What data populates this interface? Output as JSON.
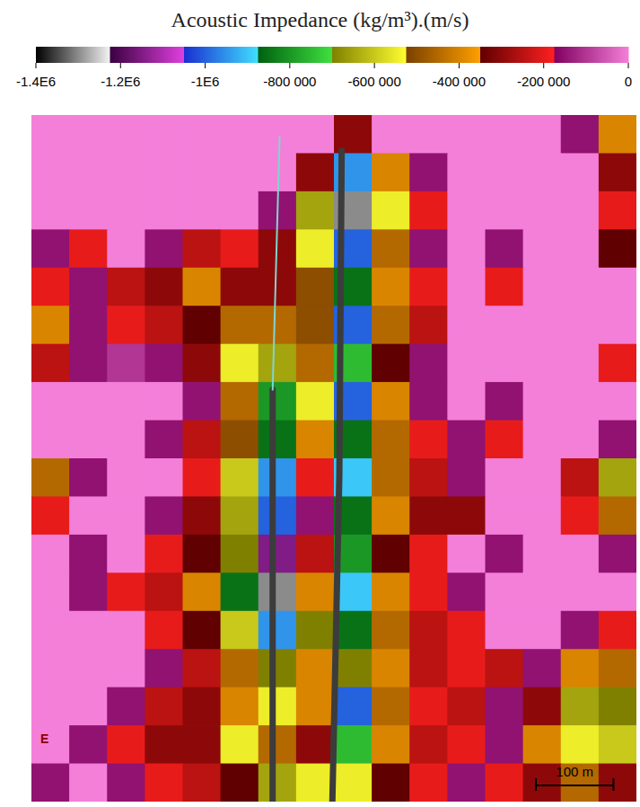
{
  "chart_data": {
    "type": "heatmap",
    "title": "Acoustic Impedance (kg/m³).(m/s)",
    "xlim": [
      0,
      780
    ],
    "ylim": [
      0,
      880
    ],
    "tick_labels": false,
    "cells": [
      [
        0,
        0,
        0,
        0,
        0,
        0,
        0,
        0,
        -300000,
        0,
        0,
        0,
        0,
        0,
        -150000,
        -400000
      ],
      [
        0,
        0,
        0,
        0,
        0,
        0,
        0,
        -300000,
        -950000,
        -400000,
        -150000,
        0,
        0,
        0,
        0,
        -300000
      ],
      [
        0,
        0,
        0,
        0,
        0,
        0,
        -150000,
        -650000,
        -1300000,
        -550000,
        -200000,
        0,
        0,
        0,
        0,
        -200000
      ],
      [
        -150000,
        -200000,
        0,
        -150000,
        -250000,
        -200000,
        -300000,
        -550000,
        -1000000,
        -450000,
        -150000,
        0,
        -150000,
        0,
        0,
        -350000
      ],
      [
        -200000,
        -150000,
        -250000,
        -300000,
        -400000,
        -300000,
        -300000,
        -500000,
        -850000,
        -400000,
        -200000,
        0,
        -200000,
        0,
        0,
        0
      ],
      [
        -400000,
        -150000,
        -200000,
        -250000,
        -350000,
        -450000,
        -450000,
        -500000,
        -1000000,
        -450000,
        -250000,
        0,
        0,
        0,
        0,
        0
      ],
      [
        -250000,
        -150000,
        -100000,
        -150000,
        -300000,
        -550000,
        -650000,
        -450000,
        -750000,
        -350000,
        -150000,
        0,
        0,
        0,
        0,
        -200000
      ],
      [
        0,
        0,
        0,
        0,
        -150000,
        -450000,
        -800000,
        -550000,
        -1000000,
        -400000,
        -150000,
        0,
        -150000,
        0,
        0,
        0
      ],
      [
        0,
        0,
        0,
        -150000,
        -250000,
        -500000,
        -850000,
        -400000,
        -850000,
        -450000,
        -200000,
        -150000,
        -200000,
        0,
        0,
        -150000
      ],
      [
        -450000,
        -150000,
        0,
        0,
        -200000,
        -600000,
        -950000,
        -200000,
        -900000,
        -450000,
        -250000,
        -150000,
        0,
        0,
        -250000,
        -650000
      ],
      [
        -200000,
        0,
        0,
        -150000,
        -300000,
        -650000,
        -1000000,
        -150000,
        -850000,
        -400000,
        -300000,
        -300000,
        0,
        0,
        -200000,
        -450000
      ],
      [
        0,
        -150000,
        0,
        -200000,
        -350000,
        -700000,
        -1150000,
        -250000,
        -800000,
        -350000,
        -200000,
        0,
        -150000,
        0,
        0,
        -150000
      ],
      [
        0,
        -150000,
        -200000,
        -250000,
        -400000,
        -850000,
        -1300000,
        -400000,
        -900000,
        -400000,
        -200000,
        -150000,
        0,
        0,
        0,
        0
      ],
      [
        0,
        0,
        0,
        -200000,
        -350000,
        -600000,
        -950000,
        -700000,
        -850000,
        -450000,
        -250000,
        -200000,
        0,
        0,
        -150000,
        -200000
      ],
      [
        0,
        0,
        0,
        -150000,
        -250000,
        -450000,
        -700000,
        -400000,
        -700000,
        -400000,
        -250000,
        -200000,
        -250000,
        -150000,
        -400000,
        -450000
      ],
      [
        0,
        0,
        -150000,
        -250000,
        -300000,
        -400000,
        -550000,
        -400000,
        -1000000,
        -450000,
        -200000,
        -250000,
        -150000,
        -300000,
        -650000,
        -700000
      ],
      [
        0,
        -150000,
        -200000,
        -300000,
        -300000,
        -550000,
        -450000,
        -300000,
        -750000,
        -400000,
        -250000,
        -200000,
        -150000,
        -400000,
        -550000,
        -600000
      ],
      [
        -150000,
        0,
        -150000,
        -200000,
        -250000,
        -350000,
        -650000,
        -550000,
        -550000,
        -350000,
        -200000,
        -150000,
        -200000,
        -300000,
        -450000,
        -300000
      ]
    ],
    "colorbar": {
      "range": [
        -1400000,
        0
      ],
      "ticks": [
        {
          "value": -1400000,
          "label": "-1.4E6"
        },
        {
          "value": -1200000,
          "label": "-1.2E6"
        },
        {
          "value": -1000000,
          "label": "-1E6"
        },
        {
          "value": -800000,
          "label": "-800 000"
        },
        {
          "value": -600000,
          "label": "-600 000"
        },
        {
          "value": -400000,
          "label": "-400 000"
        },
        {
          "value": -200000,
          "label": "-200 000"
        },
        0
      ],
      "colors": [
        "#000000",
        "#f4f4f4",
        "#3a0040",
        "#e040e0",
        "#1a2fd0",
        "#40e0ff",
        "#006010",
        "#40e040",
        "#808000",
        "#ffff30",
        "#7a4000",
        "#ffa000",
        "#600000",
        "#ff2020",
        "#800060",
        "#f47fd9"
      ]
    },
    "wells": [
      {
        "color": "#3c3c3c",
        "line_style": "thick",
        "x": [
          400,
          397,
          388
        ],
        "y": [
          46,
          461,
          880
        ]
      },
      {
        "color": "#3c3c3c",
        "line_style": "thick",
        "x": [
          311,
          311
        ],
        "y": [
          352,
          880
        ]
      },
      {
        "color": "#7fd6d0",
        "line_style": "thin",
        "x": [
          320,
          311
        ],
        "y": [
          28,
          352
        ]
      }
    ],
    "annotations": [
      {
        "text": "E"
      }
    ],
    "scale_bar": {
      "value": 100,
      "label": "100 m"
    }
  }
}
